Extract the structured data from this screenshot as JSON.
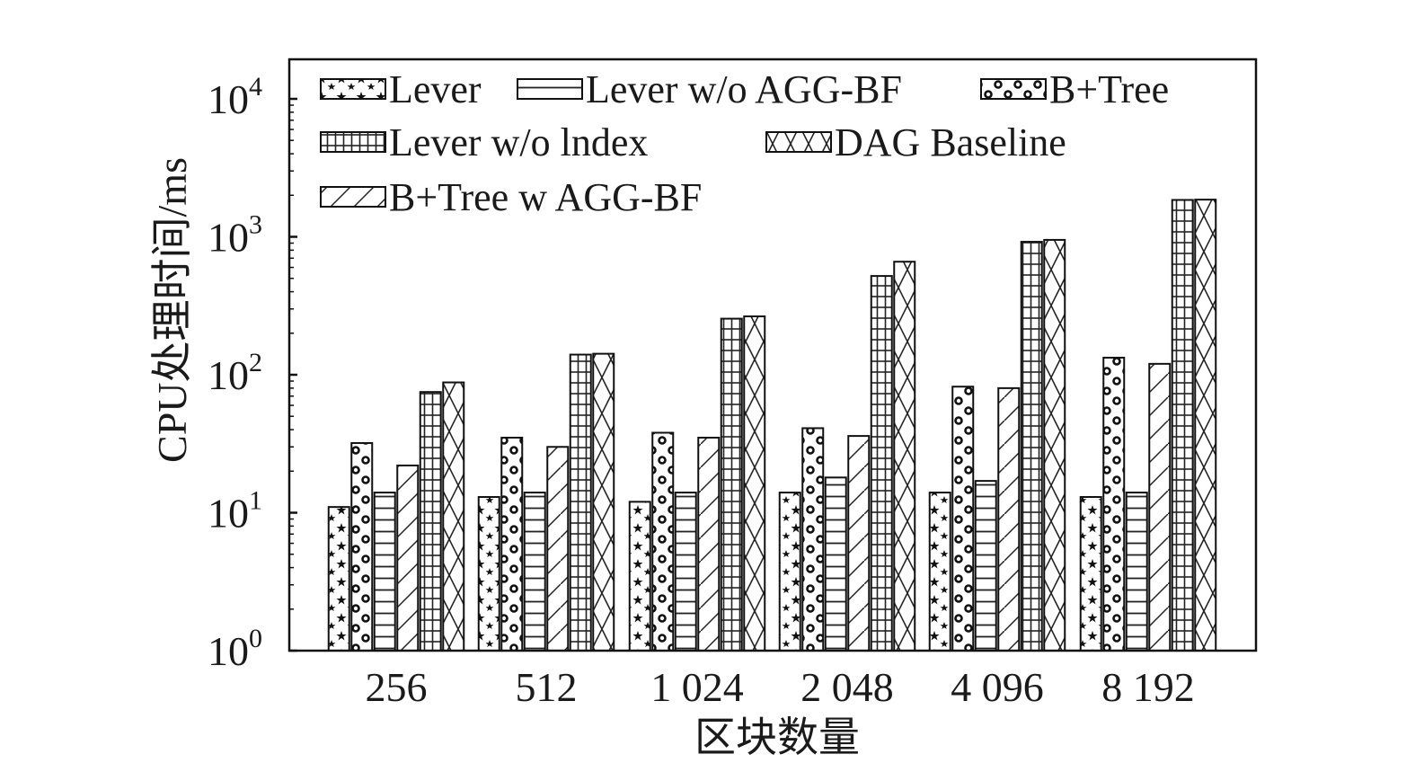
{
  "chart_data": {
    "type": "bar",
    "scale": "log",
    "ylim": [
      1,
      20000
    ],
    "xlabel": "区块数量",
    "ylabel": "CPU处理时间/ms",
    "categories": [
      "256",
      "512",
      "1 024",
      "2 048",
      "4 096",
      "8 192"
    ],
    "y_ticks": [
      {
        "value": 1,
        "base": "10",
        "exp": "0"
      },
      {
        "value": 10,
        "base": "10",
        "exp": "1"
      },
      {
        "value": 100,
        "base": "10",
        "exp": "2"
      },
      {
        "value": 1000,
        "base": "10",
        "exp": "3"
      },
      {
        "value": 10000,
        "base": "10",
        "exp": "4"
      }
    ],
    "legend_position": "top-left (inside plot)",
    "grid": false,
    "series": [
      {
        "name": "Lever",
        "pattern": "stars",
        "values": [
          11,
          13,
          12,
          14,
          14,
          13
        ]
      },
      {
        "name": "B+Tree",
        "pattern": "dots",
        "values": [
          32,
          35,
          38,
          41,
          82,
          133
        ]
      },
      {
        "name": "Lever w/o AGG-BF",
        "pattern": "hlines",
        "values": [
          14,
          14,
          14,
          18,
          17,
          14
        ]
      },
      {
        "name": "B+Tree w AGG-BF",
        "pattern": "diagonal",
        "values": [
          22,
          30,
          35,
          36,
          80,
          120
        ]
      },
      {
        "name": "Lever w/o lndex",
        "pattern": "grid",
        "values": [
          75,
          140,
          255,
          520,
          920,
          1850
        ]
      },
      {
        "name": "DAG Baseline",
        "pattern": "cross",
        "values": [
          88,
          142,
          265,
          660,
          950,
          1860
        ]
      }
    ],
    "legend_rows": [
      [
        "Lever",
        "Lever w/o AGG-BF",
        "B+Tree"
      ],
      [
        "Lever w/o lndex",
        "DAG Baseline"
      ],
      [
        "B+Tree w AGG-BF"
      ]
    ]
  }
}
